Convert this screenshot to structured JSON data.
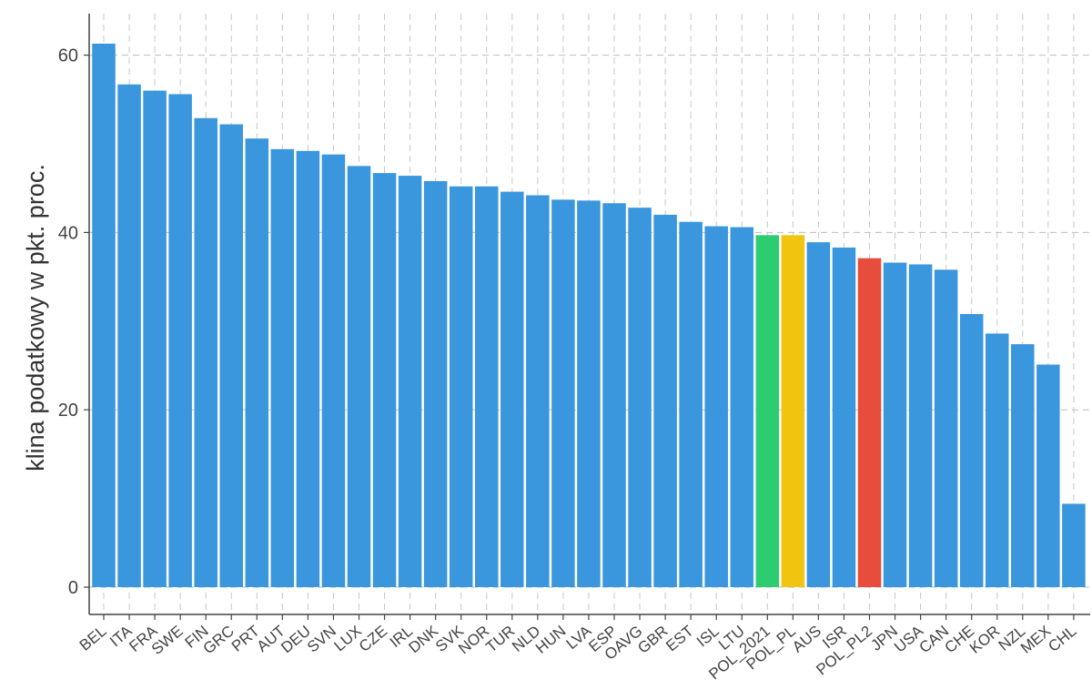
{
  "chart_data": {
    "type": "bar",
    "ylabel": "klina podatkowy w pkt. proc.",
    "xlabel": "",
    "ylim": [
      0,
      65
    ],
    "yticks": [
      0,
      20,
      40,
      60
    ],
    "grid": true,
    "categories": [
      "BEL",
      "ITA",
      "FRA",
      "SWE",
      "FIN",
      "GRC",
      "PRT",
      "AUT",
      "DEU",
      "SVN",
      "LUX",
      "CZE",
      "IRL",
      "DNK",
      "SVK",
      "NOR",
      "TUR",
      "NLD",
      "HUN",
      "LVA",
      "ESP",
      "OAVG",
      "GBR",
      "EST",
      "ISL",
      "LTU",
      "POL_2021",
      "POL_PL",
      "AUS",
      "ISR",
      "POL_PL2",
      "JPN",
      "USA",
      "CAN",
      "CHE",
      "KOR",
      "NZL",
      "MEX",
      "CHL"
    ],
    "values": [
      61.3,
      56.7,
      56.0,
      55.6,
      52.9,
      52.2,
      50.6,
      49.4,
      49.2,
      48.8,
      47.5,
      46.7,
      46.4,
      45.8,
      45.2,
      45.2,
      44.6,
      44.2,
      43.7,
      43.6,
      43.3,
      42.8,
      42.0,
      41.2,
      40.7,
      40.6,
      39.7,
      39.7,
      38.9,
      38.3,
      37.1,
      36.6,
      36.4,
      35.8,
      30.8,
      28.6,
      27.4,
      25.1,
      9.4
    ],
    "colors": {
      "default": "#3a96dd",
      "POL_2021": "#2ecc71",
      "POL_PL": "#f1c40f",
      "POL_PL2": "#e74c3c"
    }
  }
}
